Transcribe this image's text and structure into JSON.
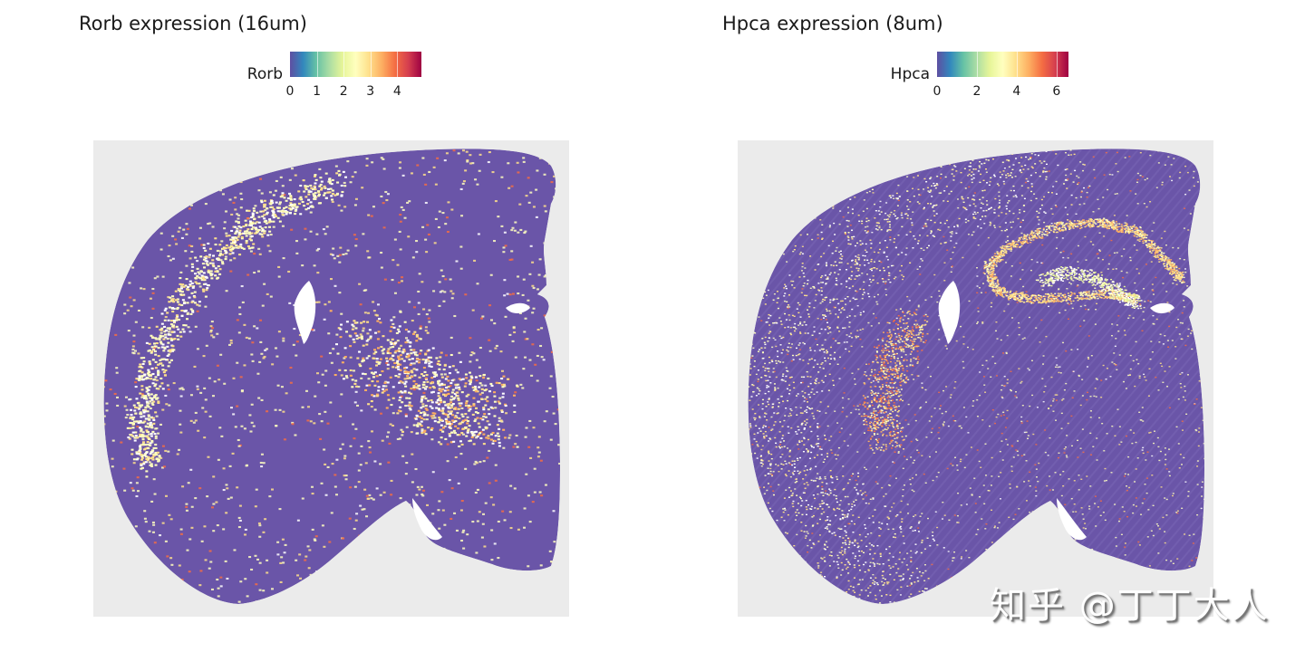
{
  "figure": {
    "background": "#ffffff",
    "panel_background": "#ebebeb",
    "tissue_color": "#6a55a8"
  },
  "panels": [
    {
      "title": "Rorb expression (16um)",
      "legend": {
        "label": "Rorb",
        "ticks": [
          "0",
          "1",
          "2",
          "3",
          "4"
        ],
        "max": 4.9
      },
      "region_highlights": [
        "cortex layer band (yellow)",
        "thalamus cluster (yellow)"
      ]
    },
    {
      "title": "Hpca expression (8um)",
      "legend": {
        "label": "Hpca",
        "ticks": [
          "0",
          "2",
          "4",
          "6"
        ],
        "max": 6.6
      },
      "region_highlights": [
        "hippocampus CA/DG (yellow-orange)",
        "striatum patch (orange)",
        "cortex (sparse)"
      ]
    }
  ],
  "colormap": {
    "name": "Spectral_r",
    "stops": [
      "#5e4fa2",
      "#3288bd",
      "#66c2a5",
      "#abdda4",
      "#e6f598",
      "#ffffbf",
      "#fee08b",
      "#fdae61",
      "#f46d43",
      "#d53e4f",
      "#9e0142"
    ]
  },
  "watermark": "知乎 @丁丁大人",
  "chart_data": [
    {
      "type": "heatmap",
      "subtype": "spatial-scatter",
      "title": "Rorb expression (16um)",
      "colorbar_label": "Rorb",
      "colorbar_ticks": [
        0,
        1,
        2,
        3,
        4
      ],
      "value_range": [
        0,
        4.9
      ],
      "xlabel": "",
      "ylabel": "",
      "grid": false,
      "legend_position": "top",
      "description": "Coronal mouse brain section; mostly 0 (purple); elevated Rorb in cortical layer band and thalamus."
    },
    {
      "type": "heatmap",
      "subtype": "spatial-scatter",
      "title": "Hpca expression (8um)",
      "colorbar_label": "Hpca",
      "colorbar_ticks": [
        0,
        2,
        4,
        6
      ],
      "value_range": [
        0,
        6.6
      ],
      "xlabel": "",
      "ylabel": "",
      "grid": false,
      "legend_position": "top",
      "description": "Coronal mouse brain section; strong Hpca in hippocampal CA and dentate gyrus; moderate in striatum/cortex."
    }
  ]
}
